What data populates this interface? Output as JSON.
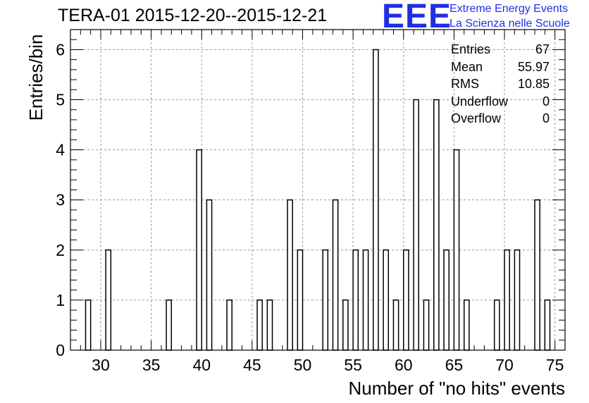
{
  "title": "TERA-01 2015-12-20--2015-12-21",
  "logo": {
    "mark": "EEE",
    "line1": "Extreme Energy Events",
    "line2": "La Scienza nelle Scuole"
  },
  "stats": [
    {
      "label": "Entries",
      "value": "67"
    },
    {
      "label": "Mean",
      "value": "55.97"
    },
    {
      "label": "RMS",
      "value": "10.85"
    },
    {
      "label": "Underflow",
      "value": "0"
    },
    {
      "label": "Overflow",
      "value": "0"
    }
  ],
  "chart_data": {
    "type": "bar",
    "title": "TERA-01 2015-12-20--2015-12-21",
    "xlabel": "Number of \"no hits\" events",
    "ylabel": "Entries/bin",
    "xlim": [
      27,
      76
    ],
    "ylim": [
      0,
      6.4
    ],
    "grid": true,
    "bin_width": 0.5,
    "x_ticks": [
      30,
      35,
      40,
      45,
      50,
      55,
      60,
      65,
      70,
      75
    ],
    "y_ticks": [
      0,
      1,
      2,
      3,
      4,
      5,
      6
    ],
    "bins": [
      {
        "x": 28.75,
        "count": 1
      },
      {
        "x": 30.75,
        "count": 2
      },
      {
        "x": 36.75,
        "count": 1
      },
      {
        "x": 39.75,
        "count": 4
      },
      {
        "x": 40.75,
        "count": 3
      },
      {
        "x": 42.75,
        "count": 1
      },
      {
        "x": 45.75,
        "count": 1
      },
      {
        "x": 46.75,
        "count": 1
      },
      {
        "x": 48.75,
        "count": 3
      },
      {
        "x": 49.75,
        "count": 2
      },
      {
        "x": 52.25,
        "count": 2
      },
      {
        "x": 53.25,
        "count": 3
      },
      {
        "x": 54.25,
        "count": 1
      },
      {
        "x": 55.25,
        "count": 2
      },
      {
        "x": 56.25,
        "count": 2
      },
      {
        "x": 57.25,
        "count": 6
      },
      {
        "x": 58.25,
        "count": 2
      },
      {
        "x": 59.25,
        "count": 1
      },
      {
        "x": 60.25,
        "count": 2
      },
      {
        "x": 61.25,
        "count": 5
      },
      {
        "x": 62.25,
        "count": 1
      },
      {
        "x": 63.25,
        "count": 5
      },
      {
        "x": 64.25,
        "count": 2
      },
      {
        "x": 65.25,
        "count": 4
      },
      {
        "x": 66.25,
        "count": 1
      },
      {
        "x": 69.25,
        "count": 1
      },
      {
        "x": 70.25,
        "count": 2
      },
      {
        "x": 71.25,
        "count": 2
      },
      {
        "x": 73.25,
        "count": 3
      },
      {
        "x": 74.25,
        "count": 1
      }
    ]
  }
}
